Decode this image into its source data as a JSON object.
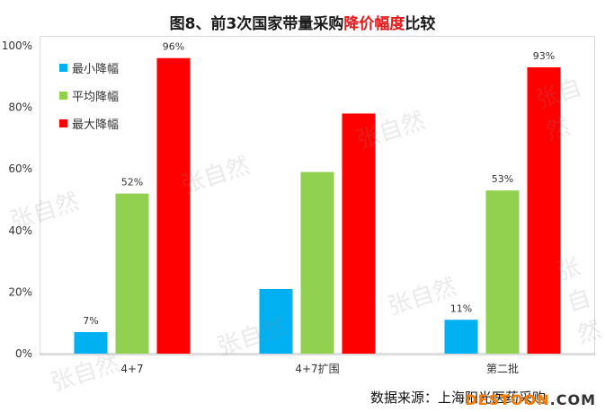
{
  "title": {
    "prefix": "图8、前3次国家带量采购",
    "highlight": "降价幅度",
    "suffix": "比较"
  },
  "source": "数据来源：上海阳光医药采购",
  "site_logo": {
    "left": "DESTOON",
    "right": ".COM"
  },
  "watermark": "张自然",
  "chart_data": {
    "type": "bar",
    "title": "图8、前3次国家带量采购降价幅度比较",
    "categories": [
      "4+7",
      "4+7扩围",
      "第二批"
    ],
    "series": [
      {
        "name": "最小降幅",
        "color": "#00b0f0",
        "values": [
          7,
          21,
          11
        ],
        "labels": [
          "7%",
          "",
          "11%"
        ]
      },
      {
        "name": "平均降幅",
        "color": "#92d050",
        "values": [
          52,
          59,
          53
        ],
        "labels": [
          "52%",
          "",
          "53%"
        ]
      },
      {
        "name": "最大降幅",
        "color": "#ff0000",
        "values": [
          96,
          78,
          93
        ],
        "labels": [
          "96%",
          "",
          "93%"
        ]
      }
    ],
    "ylim": [
      0,
      100
    ],
    "yticks": [
      "0%",
      "20%",
      "40%",
      "60%",
      "80%",
      "100%"
    ],
    "legend_position": "top-left",
    "grid": false
  }
}
